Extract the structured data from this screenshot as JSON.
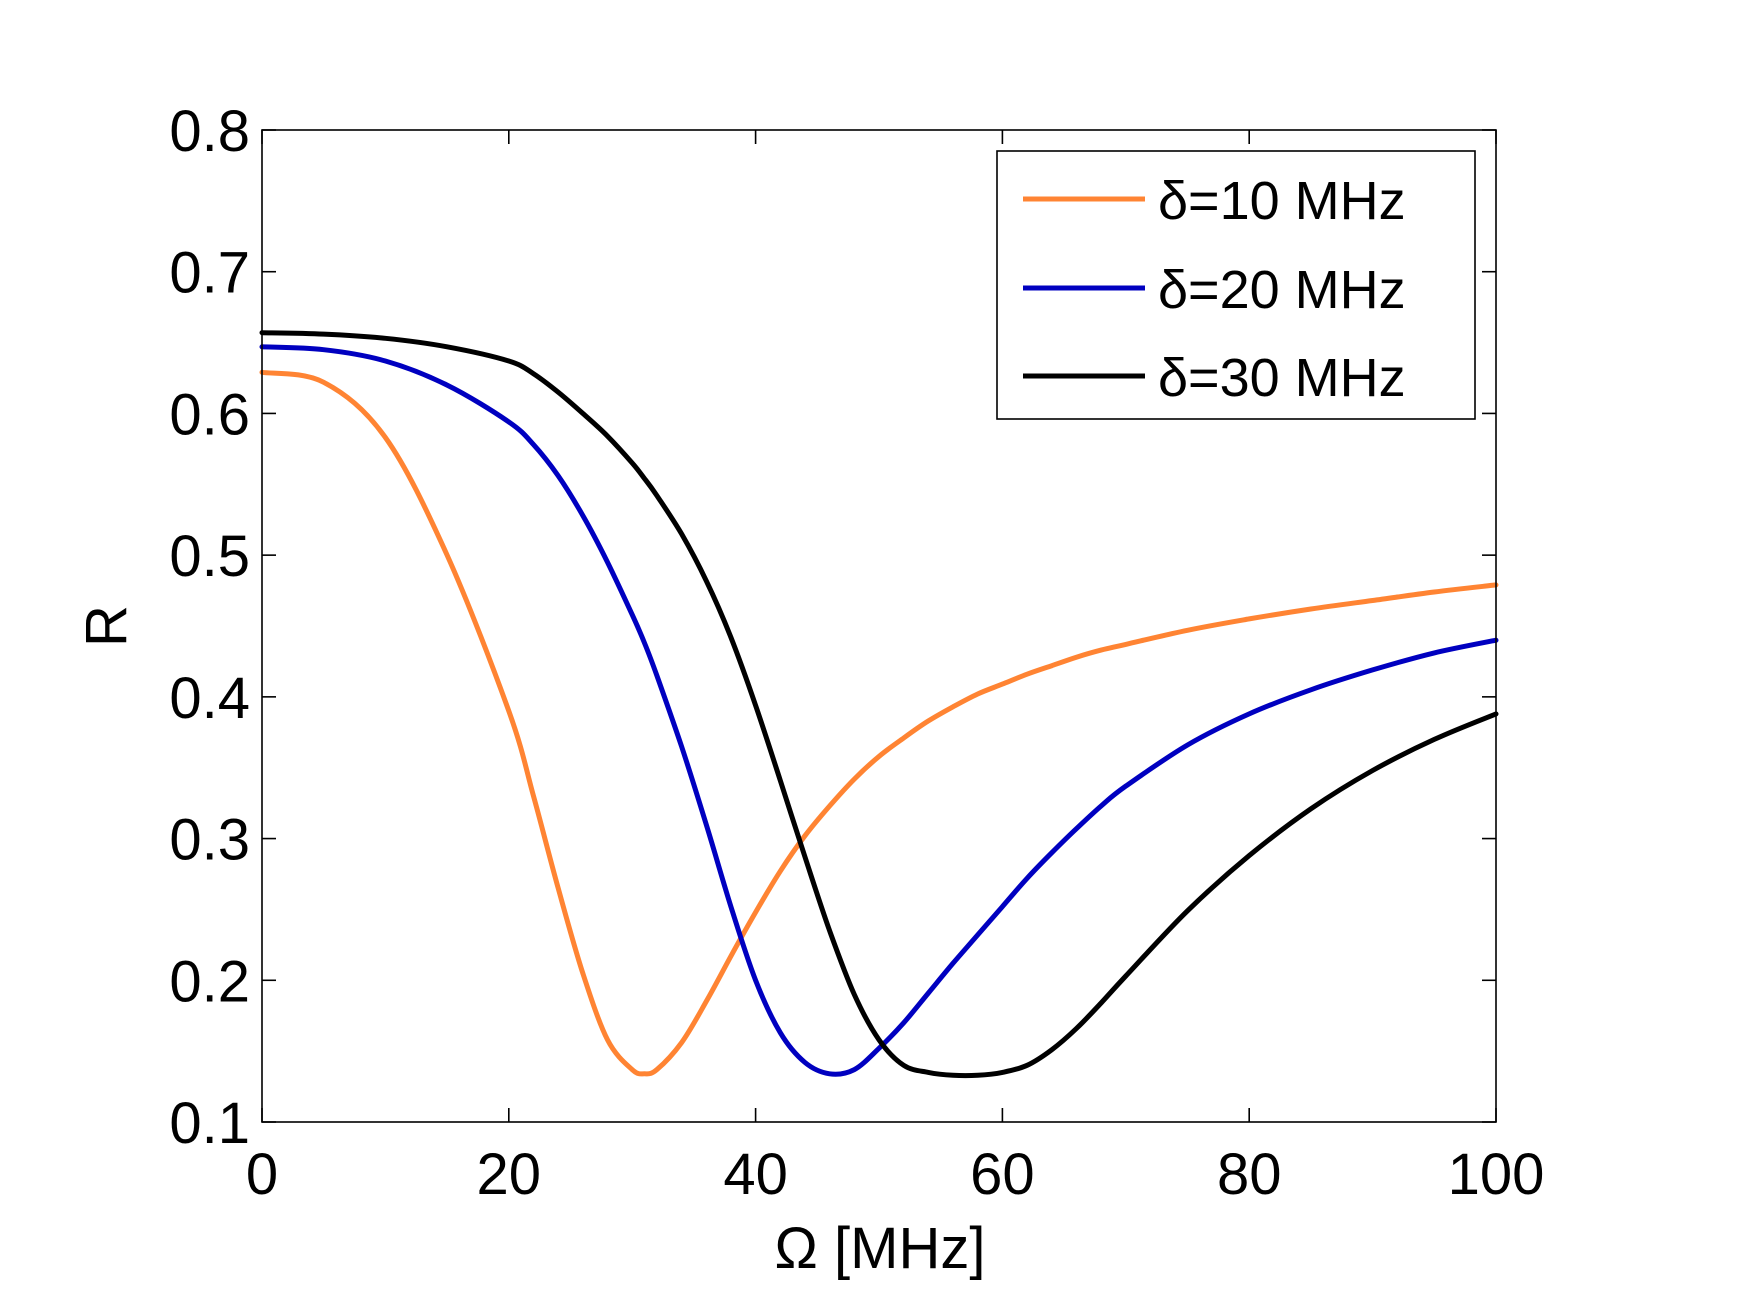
{
  "chart_data": {
    "type": "line",
    "title": "",
    "xlabel": "Ω [MHz]",
    "ylabel": "R",
    "xlim": [
      0,
      100
    ],
    "ylim": [
      0.1,
      0.8
    ],
    "xticks": [
      0,
      20,
      40,
      60,
      80,
      100
    ],
    "xtick_labels": [
      "0",
      "20",
      "40",
      "60",
      "80",
      "100"
    ],
    "yticks": [
      0.1,
      0.2,
      0.3,
      0.4,
      0.5,
      0.6,
      0.7,
      0.8
    ],
    "ytick_labels": [
      "0.1",
      "0.2",
      "0.3",
      "0.4",
      "0.5",
      "0.6",
      "0.7",
      "0.8"
    ],
    "grid": false,
    "legend_position": "top-right",
    "x": [
      0,
      5,
      10,
      15,
      20,
      22,
      24,
      26,
      28,
      30,
      31,
      32,
      34,
      36,
      38,
      40,
      42,
      44,
      46,
      48,
      50,
      52,
      54,
      56,
      58,
      60,
      62,
      64,
      66,
      68,
      70,
      75,
      80,
      85,
      90,
      95,
      100
    ],
    "series": [
      {
        "name": "δ=10 MHz",
        "color": "#ff8433",
        "values": [
          0.629,
          0.622,
          0.583,
          0.5,
          0.39,
          0.33,
          0.265,
          0.205,
          0.158,
          0.137,
          0.134,
          0.137,
          0.156,
          0.185,
          0.217,
          0.248,
          0.277,
          0.302,
          0.323,
          0.342,
          0.358,
          0.371,
          0.383,
          0.393,
          0.402,
          0.409,
          0.416,
          0.422,
          0.428,
          0.433,
          0.437,
          0.447,
          0.455,
          0.462,
          0.468,
          0.474,
          0.479
        ]
      },
      {
        "name": "δ=20 MHz",
        "color": "#0000c0",
        "values": [
          0.647,
          0.645,
          0.637,
          0.62,
          0.594,
          0.578,
          0.556,
          0.528,
          0.495,
          0.458,
          0.438,
          0.415,
          0.365,
          0.31,
          0.252,
          0.2,
          0.163,
          0.142,
          0.134,
          0.137,
          0.152,
          0.17,
          0.191,
          0.212,
          0.232,
          0.252,
          0.272,
          0.29,
          0.307,
          0.323,
          0.337,
          0.366,
          0.388,
          0.405,
          0.419,
          0.431,
          0.44
        ]
      },
      {
        "name": "δ=30 MHz",
        "color": "#000000",
        "values": [
          0.657,
          0.656,
          0.653,
          0.647,
          0.637,
          0.628,
          0.615,
          0.6,
          0.584,
          0.565,
          0.554,
          0.542,
          0.515,
          0.482,
          0.442,
          0.394,
          0.341,
          0.287,
          0.235,
          0.19,
          0.158,
          0.14,
          0.135,
          0.133,
          0.133,
          0.135,
          0.14,
          0.151,
          0.166,
          0.184,
          0.203,
          0.249,
          0.288,
          0.321,
          0.348,
          0.37,
          0.388
        ]
      }
    ]
  }
}
